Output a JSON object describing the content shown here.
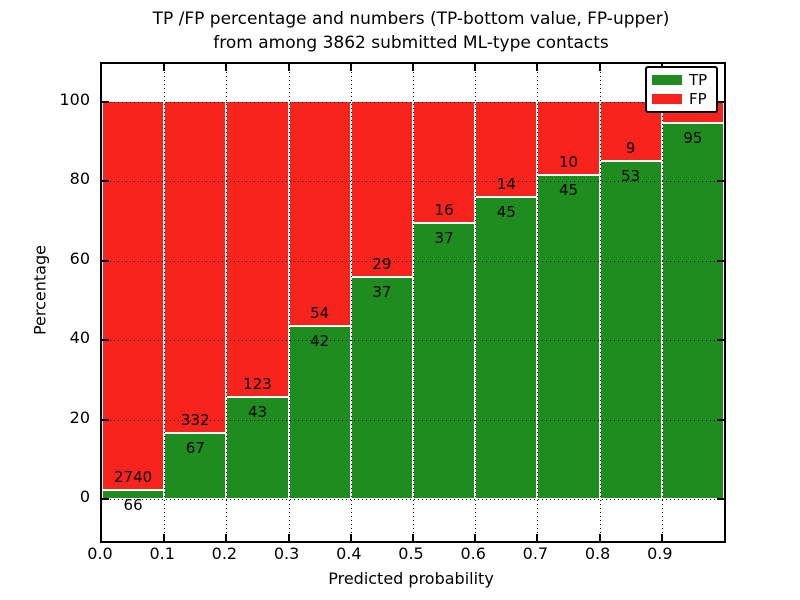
{
  "chart_data": {
    "type": "bar",
    "stacked": true,
    "orientation": "vertical",
    "title_line1": "TP /FP percentage and numbers (TP-bottom value, FP-upper)",
    "title_line2": "from among 3862 submitted ML-type contacts",
    "xlabel": "Predicted probability",
    "ylabel": "Percentage",
    "total_contacts": 3862,
    "bin_edges": [
      0.0,
      0.1,
      0.2,
      0.3,
      0.4,
      0.5,
      0.6,
      0.7,
      0.8,
      0.9,
      1.0
    ],
    "categories": [
      "0.0-0.1",
      "0.1-0.2",
      "0.2-0.3",
      "0.3-0.4",
      "0.4-0.5",
      "0.5-0.6",
      "0.6-0.7",
      "0.7-0.8",
      "0.8-0.9",
      "0.9-1.0"
    ],
    "x_tick_labels": [
      "0.0",
      "0.1",
      "0.2",
      "0.3",
      "0.4",
      "0.5",
      "0.6",
      "0.7",
      "0.8",
      "0.9"
    ],
    "y_ticks": [
      0,
      20,
      40,
      60,
      80,
      100
    ],
    "ylim": [
      -10.6,
      109.6
    ],
    "grid": "dotted-black-horizontal-and-vertical",
    "bar_edge_color": "#ffffff",
    "series": [
      {
        "name": "TP",
        "color": "#1e8c1e",
        "counts": [
          66,
          67,
          43,
          42,
          37,
          37,
          45,
          45,
          53,
          95
        ],
        "count_labels": [
          "66",
          "67",
          "43",
          "42",
          "37",
          "37",
          "45",
          "45",
          "53",
          "95"
        ],
        "pct_of_bin": [
          2.4,
          16.8,
          25.9,
          43.8,
          56.1,
          69.8,
          76.3,
          81.8,
          85.5,
          95.0
        ]
      },
      {
        "name": "FP",
        "color": "#f8231c",
        "count_labels": [
          "2740",
          "332",
          "123",
          "54",
          "29",
          "16",
          "14",
          "10",
          "9",
          ""
        ]
      }
    ],
    "legend": {
      "position": "upper right",
      "entries": [
        "TP",
        "FP"
      ]
    }
  }
}
